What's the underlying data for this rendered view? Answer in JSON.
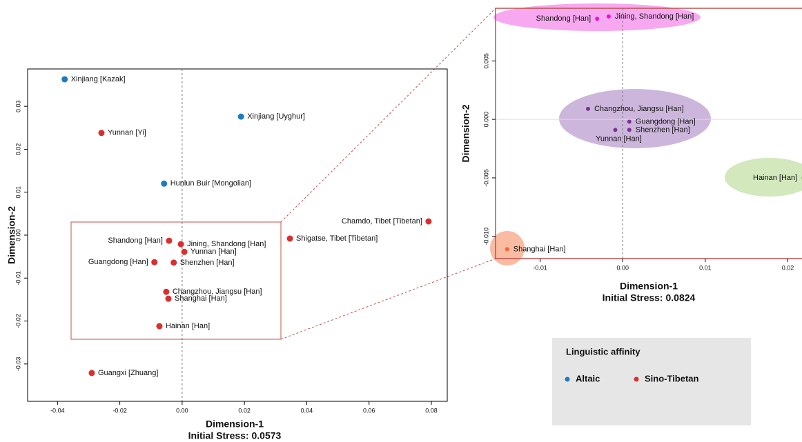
{
  "chart_data": [
    {
      "type": "scatter",
      "x_label": "Dimension-1",
      "subtitle": "Initial Stress: 0.0573",
      "y_label": "Dimension-2",
      "xlim": [
        -0.0496,
        0.0851
      ],
      "ylim": [
        -0.0387,
        0.0387
      ],
      "xticks": [
        -0.04,
        -0.02,
        {
          "value": 0,
          "label": "0.00"
        },
        0.02,
        0.04,
        0.06,
        0.08
      ],
      "yticks": [
        -0.03,
        -0.02,
        -0.01,
        {
          "value": 0,
          "label": "0.00"
        },
        0.01,
        0.02,
        0.03
      ],
      "legend_title": "Linguistic affinity",
      "series": [
        {
          "name": "Altaic",
          "color": "#1b7cbf",
          "labels": [
            "Xinjiang [Kazak]",
            "Xinjiang [Uyghur]",
            "Hunlun Buir [Mongolian]"
          ],
          "x": [
            -0.0377,
            0.0189,
            -0.0058
          ],
          "values": [
            0.0363,
            0.0276,
            0.012
          ]
        },
        {
          "name": "Sino-Tibetan",
          "color": "#d7302f",
          "labels": [
            "Yunnan [Yi]",
            "Chamdo, Tibet [Tibetan]",
            "Shigatse, Tibet [Tibetan]",
            "Shandong [Han]",
            "Jining, Shandong [Han]",
            "Yunnan [Han]",
            "Guangdong [Han]",
            "Shenzhen [Han]",
            "Changzhou, Jiangsu [Han]",
            "Shanghai [Han]",
            "Hainan [Han]",
            "Guangxi [Zhuang]"
          ],
          "x": [
            -0.0259,
            0.0791,
            0.0346,
            -0.0042,
            -0.0004,
            0.0007,
            -0.0089,
            -0.0027,
            -0.0051,
            -0.0044,
            -0.0073,
            -0.029
          ],
          "values": [
            0.0238,
            0.0032,
            -0.0008,
            -0.0013,
            -0.0021,
            -0.0039,
            -0.0063,
            -0.0064,
            -0.0132,
            -0.0148,
            -0.0212,
            -0.0321
          ]
        }
      ]
    },
    {
      "type": "scatter",
      "x_label": "Dimension-1",
      "subtitle": "Initial Stress: 0.0824",
      "y_label": "Dimension-2",
      "xlim": [
        -0.0154,
        0.0228
      ],
      "ylim": [
        -0.0119,
        0.0095
      ],
      "xticks": [
        -0.01,
        {
          "value": 0,
          "label": "0.00"
        },
        0.01,
        0.02
      ],
      "yticks": [
        {
          "value": -0.01,
          "label": "-0.010"
        },
        -0.005,
        {
          "value": 0,
          "label": "0.000"
        },
        0.005
      ],
      "series": [
        {
          "color": "#e815d6",
          "labels": [
            "Shandong [Han]",
            "Jining, Shandong [Han]"
          ],
          "x": [
            -0.0031,
            -0.0017
          ],
          "values": [
            0.0086,
            0.0088
          ]
        },
        {
          "color": "#7b3294",
          "labels": [
            "Changzhou, Jiangsu [Han]",
            "Guangdong [Han]",
            "Shenzhen [Han]",
            "Yunnan [Han]"
          ],
          "x": [
            -0.0042,
            0.0008,
            0.0008,
            -0.0009
          ],
          "values": [
            0.0009,
            -0.0002,
            -0.0009,
            -0.0009
          ]
        },
        {
          "color": "#7fc241",
          "labels": [
            "Hainan [Han]"
          ],
          "x": [
            0.0219
          ],
          "values": [
            -0.005
          ]
        },
        {
          "color": "#f06b2a",
          "labels": [
            "Shanghai [Han]"
          ],
          "x": [
            -0.014
          ],
          "values": [
            -0.0111
          ]
        }
      ]
    }
  ]
}
